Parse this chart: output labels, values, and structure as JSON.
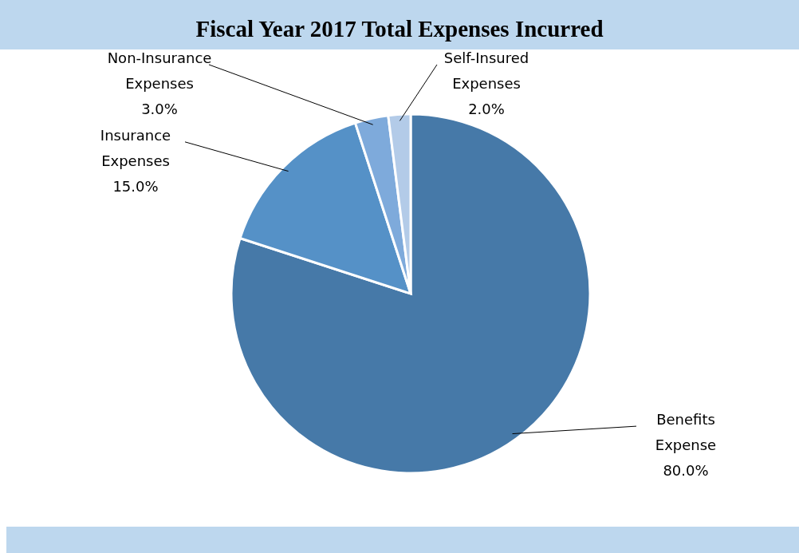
{
  "chart_data": {
    "type": "pie",
    "title": "Fiscal Year 2017 Total Expenses Incurred",
    "categories": [
      "Benefits Expense",
      "Insurance Expenses",
      "Non-Insurance Expenses",
      "Self-Insured Expenses"
    ],
    "values": [
      80,
      15,
      3,
      2
    ],
    "colors": [
      "#4679a8",
      "#5591c7",
      "#7eaadb",
      "#b3cbe8"
    ],
    "value_labels": [
      "80.0%",
      "15.0%",
      "3.0%",
      "2.0%"
    ]
  }
}
